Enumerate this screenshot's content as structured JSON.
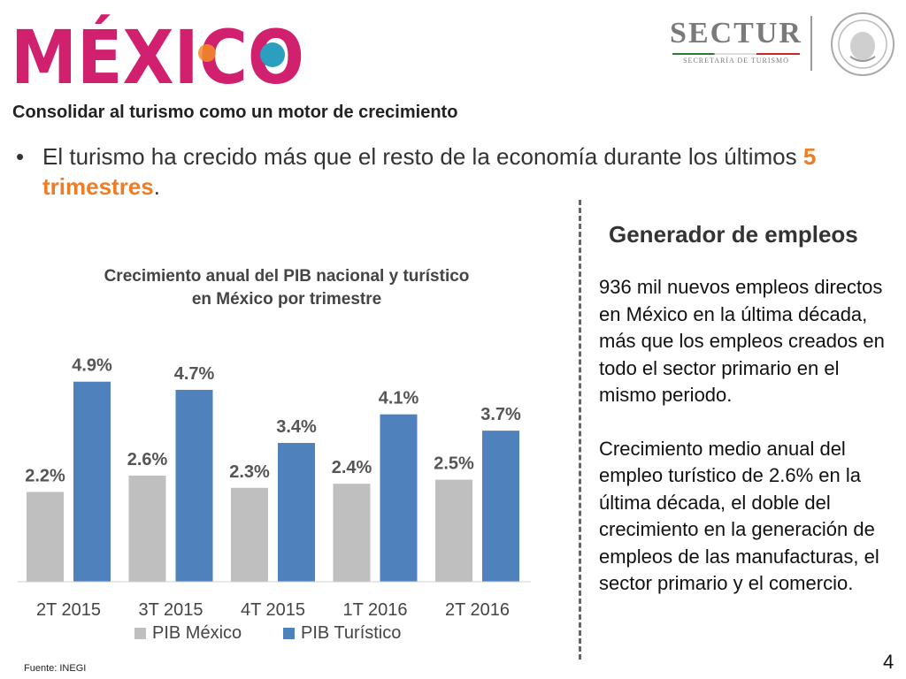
{
  "header": {
    "logo_text": "MÉXICO",
    "sectur_text": "SECTUR",
    "sectur_sub": "SECRETARÍA DE TURISMO"
  },
  "subtitle": "Consolidar al turismo como un motor de crecimiento",
  "bullet": {
    "text": "El turismo ha crecido más que el resto de la economía durante los últimos ",
    "highlight": "5 trimestres",
    "suffix": "."
  },
  "employment": {
    "title": "Generador de empleos",
    "paragraph1": "936 mil nuevos empleos directos en México en la última década, más que los empleos creados en todo el sector primario en el mismo periodo.",
    "paragraph2": "Crecimiento medio anual del empleo turístico de 2.6% en la última década, el doble del crecimiento en la generación de empleos de las manufacturas, el sector primario y el comercio."
  },
  "chart_data": {
    "type": "bar",
    "title": "Crecimiento anual del PIB nacional y turístico en México por trimestre",
    "title_line1": "Crecimiento anual del PIB nacional y turístico",
    "title_line2": "en México por trimestre",
    "categories": [
      "2T 2015",
      "3T 2015",
      "4T 2015",
      "1T 2016",
      "2T 2016"
    ],
    "series": [
      {
        "name": "PIB México",
        "values": [
          2.2,
          2.6,
          2.3,
          2.4,
          2.5
        ],
        "labels": [
          "2.2%",
          "2.6%",
          "2.3%",
          "2.4%",
          "2.5%"
        ],
        "color": "#bfbfbf"
      },
      {
        "name": "PIB Turístico",
        "values": [
          4.9,
          4.7,
          3.4,
          4.1,
          3.7
        ],
        "labels": [
          "4.9%",
          "4.7%",
          "3.4%",
          "4.1%",
          "3.7%"
        ],
        "color": "#4f81bd"
      }
    ],
    "ylim": [
      0,
      5.5
    ],
    "grid": false,
    "legend_position": "bottom"
  },
  "footer": {
    "source": "Fuente: INEGI",
    "page_number": "4"
  }
}
